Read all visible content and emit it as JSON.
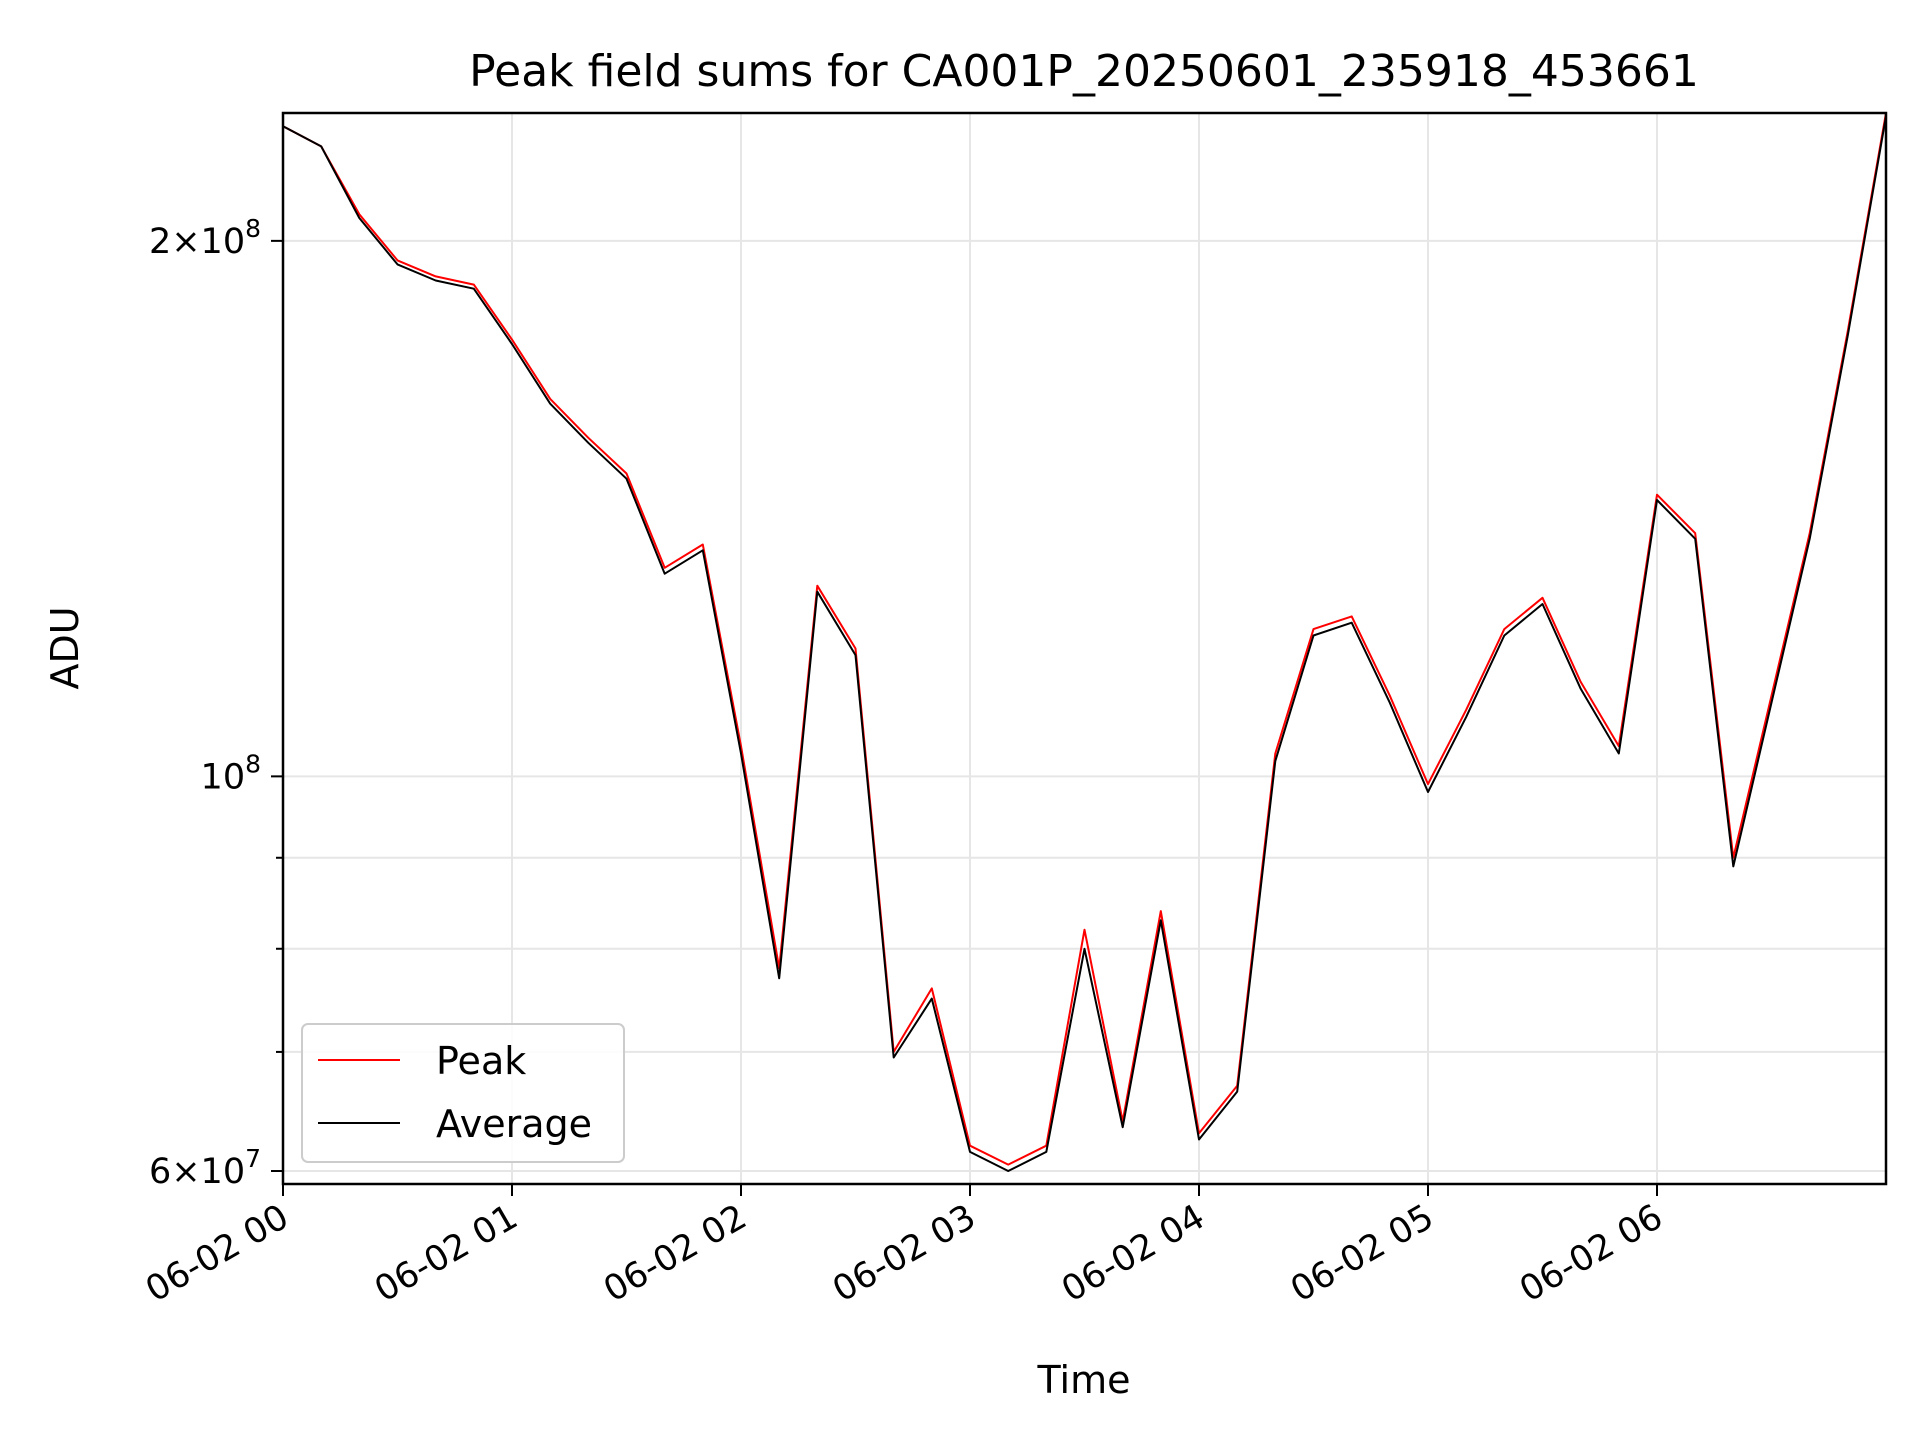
{
  "chart_data": {
    "type": "line",
    "title": "Peak field sums for CA001P_20250601_235918_453661",
    "xlabel": "Time",
    "ylabel": "ADU",
    "yscale": "log",
    "xlim": [
      "2025-06-02 00:00",
      "2025-06-02 07:00"
    ],
    "ylim": [
      59000000,
      236000000
    ],
    "grid": true,
    "legend_position": "lower-left",
    "x_ticks": [
      {
        "value": "2025-06-02 00:00",
        "label": "06-02 00"
      },
      {
        "value": "2025-06-02 01:00",
        "label": "06-02 01"
      },
      {
        "value": "2025-06-02 02:00",
        "label": "06-02 02"
      },
      {
        "value": "2025-06-02 03:00",
        "label": "06-02 03"
      },
      {
        "value": "2025-06-02 04:00",
        "label": "06-02 04"
      },
      {
        "value": "2025-06-02 05:00",
        "label": "06-02 05"
      },
      {
        "value": "2025-06-02 06:00",
        "label": "06-02 06"
      }
    ],
    "y_ticks_major": [
      {
        "value": 60000000,
        "mantissa": "6",
        "exponent": "7"
      },
      {
        "value": 100000000,
        "mantissa": "",
        "exponent": "8"
      },
      {
        "value": 200000000,
        "mantissa": "2",
        "exponent": "8"
      }
    ],
    "y_ticks_minor": [
      70000000,
      80000000,
      90000000
    ],
    "x": [
      "2025-06-02 00:00",
      "2025-06-02 00:10",
      "2025-06-02 00:20",
      "2025-06-02 00:30",
      "2025-06-02 00:40",
      "2025-06-02 00:50",
      "2025-06-02 01:00",
      "2025-06-02 01:10",
      "2025-06-02 01:20",
      "2025-06-02 01:30",
      "2025-06-02 01:40",
      "2025-06-02 01:50",
      "2025-06-02 02:00",
      "2025-06-02 02:10",
      "2025-06-02 02:20",
      "2025-06-02 02:30",
      "2025-06-02 02:40",
      "2025-06-02 02:50",
      "2025-06-02 03:00",
      "2025-06-02 03:10",
      "2025-06-02 03:20",
      "2025-06-02 03:30",
      "2025-06-02 03:40",
      "2025-06-02 03:50",
      "2025-06-02 04:00",
      "2025-06-02 04:10",
      "2025-06-02 04:20",
      "2025-06-02 04:30",
      "2025-06-02 04:40",
      "2025-06-02 04:50",
      "2025-06-02 05:00",
      "2025-06-02 05:10",
      "2025-06-02 05:20",
      "2025-06-02 05:30",
      "2025-06-02 05:40",
      "2025-06-02 05:50",
      "2025-06-02 06:00",
      "2025-06-02 06:10",
      "2025-06-02 06:20",
      "2025-06-02 06:30",
      "2025-06-02 06:40",
      "2025-06-02 06:50",
      "2025-06-02 07:00"
    ],
    "series": [
      {
        "name": "Peak",
        "color": "#ff0000",
        "values": [
          232000000,
          226000000,
          207000000,
          195000000,
          191000000,
          189000000,
          176000000,
          163000000,
          155000000,
          148000000,
          131000000,
          135000000,
          104000000,
          78000000,
          128000000,
          118000000,
          70000000,
          76000000,
          62000000,
          60500000,
          62000000,
          82000000,
          64000000,
          84000000,
          63000000,
          67000000,
          103000000,
          121000000,
          123000000,
          111000000,
          99000000,
          109000000,
          121000000,
          126000000,
          113000000,
          104000000,
          144000000,
          137000000,
          90000000,
          111000000,
          137000000,
          178000000,
          236000000
        ]
      },
      {
        "name": "Average",
        "color": "#000000",
        "values": [
          232000000,
          226000000,
          206000000,
          194000000,
          190000000,
          188000000,
          175000000,
          162000000,
          154000000,
          147000000,
          130000000,
          134000000,
          103000000,
          77000000,
          127000000,
          117000000,
          69500000,
          75000000,
          61500000,
          60000000,
          61500000,
          80000000,
          63500000,
          83000000,
          62500000,
          66500000,
          102000000,
          120000000,
          122000000,
          110000000,
          98000000,
          108000000,
          120000000,
          125000000,
          112000000,
          103000000,
          143000000,
          136000000,
          89000000,
          110000000,
          136000000,
          177000000,
          235000000
        ]
      }
    ]
  }
}
